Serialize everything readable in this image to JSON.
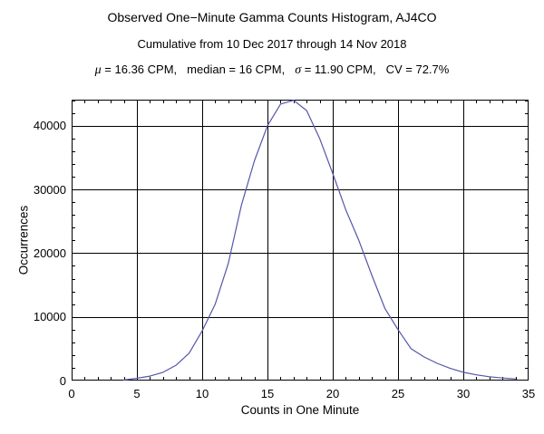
{
  "header": {
    "title": "Observed One−Minute Gamma Counts Histogram, AJ4CO",
    "subtitle": "Cumulative from 10 Dec 2017 through 14 Nov 2018",
    "stats": {
      "mu_symbol": "μ",
      "mu_rest": " = 16.36 CPM,",
      "median_text": "median = 16 CPM,",
      "sigma_symbol": "σ",
      "sigma_rest": " = 11.90 CPM,",
      "cv_text": "CV = 72.7%"
    }
  },
  "chart_data": {
    "type": "line",
    "title": "Observed One−Minute Gamma Counts Histogram, AJ4CO",
    "subtitle": "Cumulative from 10 Dec 2017 through 14 Nov 2018",
    "annotation": "μ = 16.36 CPM, median = 16 CPM, σ = 11.90 CPM, CV = 72.7%",
    "xlabel": "Counts in One Minute",
    "ylabel": "Occurrences",
    "xlim": [
      0,
      35
    ],
    "ylim": [
      0,
      44100
    ],
    "xticks": [
      0,
      5,
      10,
      15,
      20,
      25,
      30,
      35
    ],
    "yticks": [
      0,
      10000,
      20000,
      30000,
      40000
    ],
    "x_minor_step": 1,
    "y_minor_step": 2000,
    "grid": true,
    "legend": "none",
    "x": [
      4,
      5,
      6,
      7,
      8,
      9,
      10,
      11,
      12,
      13,
      14,
      15,
      16,
      17,
      18,
      19,
      20,
      21,
      22,
      23,
      24,
      25,
      26,
      27,
      28,
      29,
      30,
      31,
      32,
      33,
      34
    ],
    "values": [
      100,
      350,
      700,
      1300,
      2400,
      4300,
      7800,
      12000,
      18400,
      27500,
      34500,
      40000,
      43400,
      44000,
      42400,
      38000,
      32500,
      26800,
      22000,
      16500,
      11300,
      8000,
      5000,
      3700,
      2700,
      1900,
      1300,
      900,
      600,
      400,
      250
    ],
    "line_color": "#5555aa",
    "frame_color": "#000000",
    "grid_color": "#000000",
    "background": "#ffffff"
  }
}
